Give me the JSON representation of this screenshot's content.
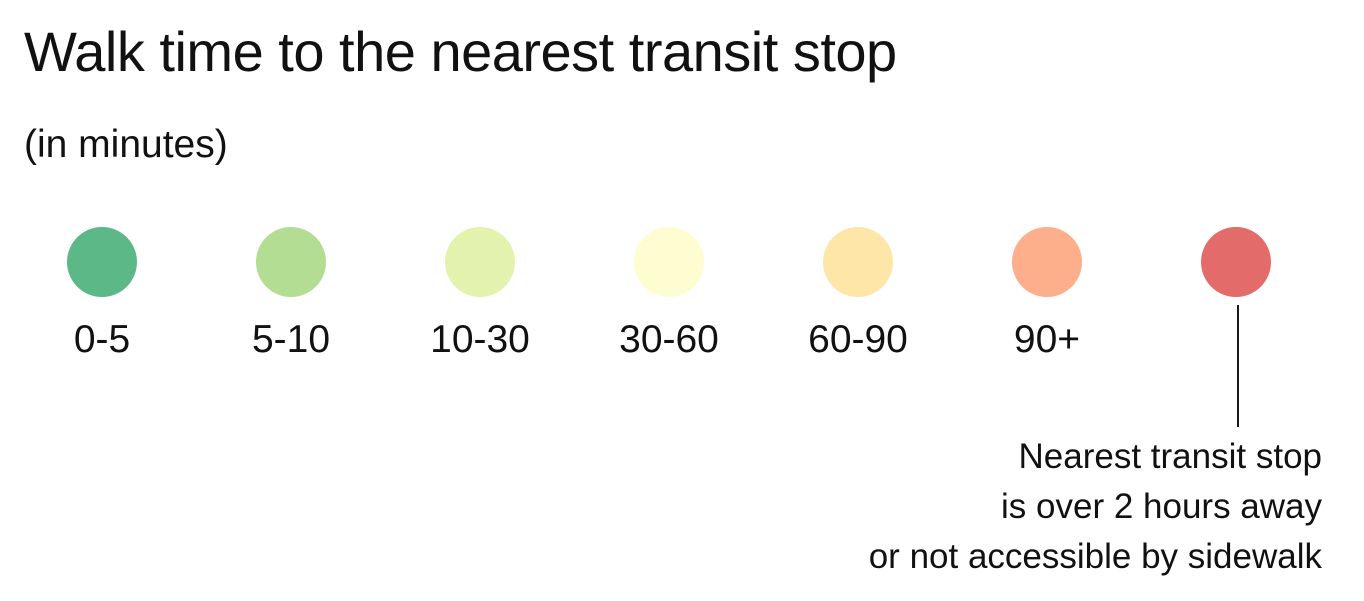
{
  "title": "Walk time to the nearest transit stop",
  "subtitle": "(in minutes)",
  "legend": [
    {
      "label": "0-5",
      "color": "#5db887"
    },
    {
      "label": "5-10",
      "color": "#b2dd92"
    },
    {
      "label": "10-30",
      "color": "#e3f2ad"
    },
    {
      "label": "30-60",
      "color": "#fdfdd1"
    },
    {
      "label": "60-90",
      "color": "#fee6a8"
    },
    {
      "label": "90+",
      "color": "#fcaf8a"
    },
    {
      "label": "",
      "color": "#e36c6b"
    }
  ],
  "note": {
    "lines": [
      "Nearest transit stop",
      "is over 2 hours away",
      "or not accessible by sidewalk"
    ]
  }
}
